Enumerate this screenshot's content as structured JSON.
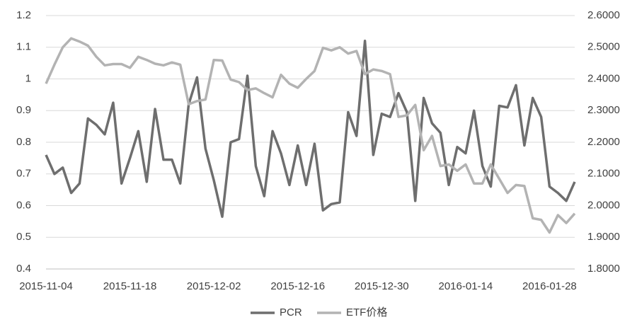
{
  "chart_data": {
    "type": "line",
    "categories": [
      "2015-11-04",
      null,
      null,
      null,
      null,
      null,
      null,
      null,
      null,
      null,
      "2015-11-18",
      null,
      null,
      null,
      null,
      null,
      null,
      null,
      null,
      null,
      "2015-12-02",
      null,
      null,
      null,
      null,
      null,
      null,
      null,
      null,
      null,
      "2015-12-16",
      null,
      null,
      null,
      null,
      null,
      null,
      null,
      null,
      null,
      "2015-12-30",
      null,
      null,
      null,
      null,
      null,
      null,
      null,
      null,
      null,
      "2016-01-14",
      null,
      null,
      null,
      null,
      null,
      null,
      null,
      null,
      null,
      "2016-01-28",
      null,
      null,
      null
    ],
    "series": [
      {
        "name": "PCR",
        "color": "#6e6e6e",
        "values": [
          0.76,
          0.7,
          0.72,
          0.64,
          0.67,
          0.875,
          0.855,
          0.825,
          0.925,
          0.67,
          0.75,
          0.835,
          0.675,
          0.905,
          0.745,
          0.745,
          0.67,
          0.92,
          1.005,
          0.78,
          0.68,
          0.565,
          0.8,
          0.81,
          1.01,
          0.725,
          0.63,
          0.835,
          0.765,
          0.665,
          0.79,
          0.665,
          0.795,
          0.585,
          0.605,
          0.61,
          0.895,
          0.82,
          1.12,
          0.76,
          0.89,
          0.88,
          0.955,
          0.895,
          0.615,
          0.94,
          0.86,
          0.83,
          0.665,
          0.785,
          0.765,
          0.9,
          0.725,
          0.66,
          0.915,
          0.91,
          0.98,
          0.79,
          0.94,
          0.88,
          0.66,
          0.64,
          0.615,
          0.675
        ]
      },
      {
        "name": "ETF价格",
        "color": "#b3b3b3",
        "axis": "y2",
        "values": [
          2.385,
          2.445,
          2.5,
          2.528,
          2.518,
          2.505,
          2.47,
          2.443,
          2.447,
          2.447,
          2.435,
          2.47,
          2.46,
          2.448,
          2.443,
          2.452,
          2.445,
          2.32,
          2.33,
          2.335,
          2.46,
          2.458,
          2.398,
          2.39,
          2.365,
          2.37,
          2.355,
          2.342,
          2.413,
          2.385,
          2.372,
          2.4,
          2.425,
          2.498,
          2.49,
          2.5,
          2.48,
          2.488,
          2.415,
          2.43,
          2.425,
          2.415,
          2.28,
          2.285,
          2.318,
          2.175,
          2.22,
          2.125,
          2.13,
          2.11,
          2.13,
          2.07,
          2.07,
          2.13,
          2.085,
          2.04,
          2.065,
          2.062,
          1.96,
          1.955,
          1.915,
          1.97,
          1.945,
          1.975
        ]
      }
    ],
    "ylim": [
      0.4,
      1.2
    ],
    "yticks": [
      0.4,
      0.5,
      0.6,
      0.7,
      0.8,
      0.9,
      1,
      1.1,
      1.2
    ],
    "y2lim": [
      1.8,
      2.6
    ],
    "y2ticks": [
      {
        "value": 1.8,
        "label": "1.8000"
      },
      {
        "value": 1.9,
        "label": "1.9000"
      },
      {
        "value": 2.0,
        "label": "2.0000"
      },
      {
        "value": 2.1,
        "label": "2.1000"
      },
      {
        "value": 2.2,
        "label": "2.2000"
      },
      {
        "value": 2.3,
        "label": "2.3000"
      },
      {
        "value": 2.4,
        "label": "2.4000"
      },
      {
        "value": 2.5,
        "label": "2.5000"
      },
      {
        "value": 2.6,
        "label": "2.6000"
      }
    ],
    "grid": true,
    "legend": "bottom"
  }
}
